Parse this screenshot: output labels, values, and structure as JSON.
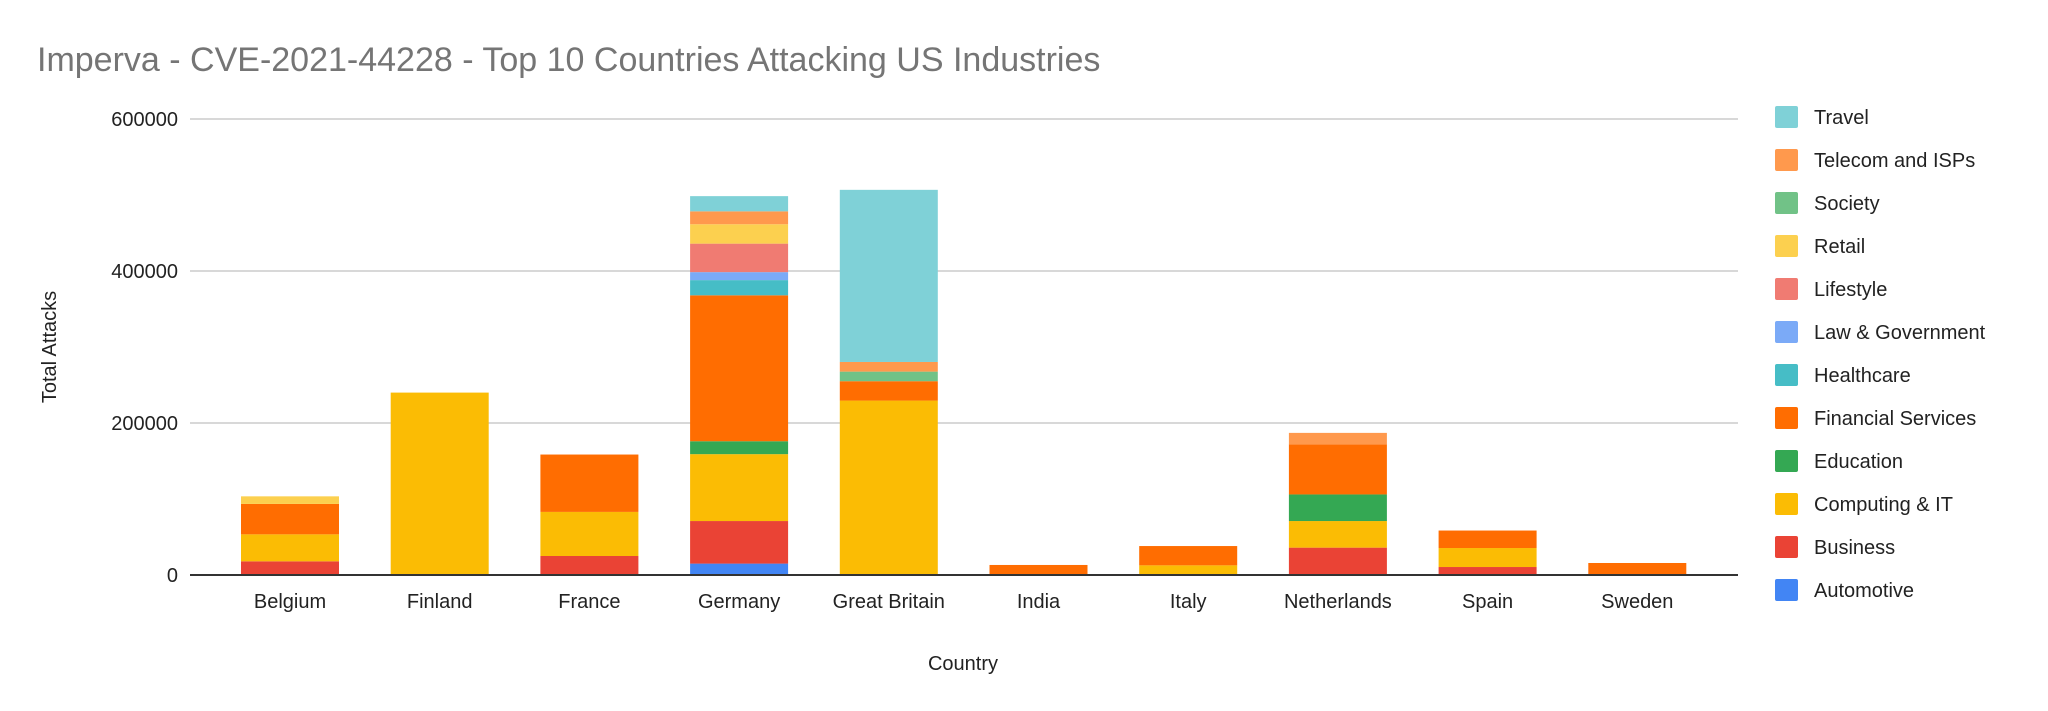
{
  "chart_data": {
    "type": "bar",
    "stacked": true,
    "title": "Imperva - CVE-2021-44228 - Top 10 Countries Attacking US Industries",
    "xlabel": "Country",
    "ylabel": "Total Attacks",
    "ylim": [
      0,
      600000
    ],
    "yticks": [
      0,
      200000,
      400000,
      600000
    ],
    "ytick_labels": [
      "0",
      "200000",
      "400000",
      "600000"
    ],
    "grid": true,
    "legend_position": "right",
    "categories": [
      "Belgium",
      "Finland",
      "France",
      "Germany",
      "Great Britain",
      "India",
      "Italy",
      "Netherlands",
      "Spain",
      "Sweden"
    ],
    "series": [
      {
        "name": "Automotive",
        "color": "#4285f4",
        "values": [
          0,
          0,
          0,
          15000,
          0,
          0,
          0,
          0,
          0,
          0
        ]
      },
      {
        "name": "Business",
        "color": "#ea4335",
        "values": [
          18000,
          0,
          25000,
          56000,
          0,
          0,
          0,
          36000,
          10500,
          0
        ]
      },
      {
        "name": "Computing & IT",
        "color": "#fbbc04",
        "values": [
          35500,
          240000,
          58000,
          88000,
          229500,
          0,
          12700,
          35000,
          25000,
          0
        ]
      },
      {
        "name": "Education",
        "color": "#34a853",
        "values": [
          0,
          0,
          0,
          17000,
          0,
          0,
          0,
          35000,
          0,
          0
        ]
      },
      {
        "name": "Financial Services",
        "color": "#ff6d01",
        "values": [
          40000,
          0,
          75500,
          192000,
          25500,
          13200,
          25400,
          66000,
          23000,
          15800
        ]
      },
      {
        "name": "Healthcare",
        "color": "#46bdc6",
        "values": [
          0,
          0,
          0,
          20000,
          0,
          0,
          0,
          0,
          0,
          0
        ]
      },
      {
        "name": "Law & Government",
        "color": "#7baaf7",
        "values": [
          0,
          0,
          0,
          10500,
          0,
          0,
          0,
          0,
          0,
          0
        ]
      },
      {
        "name": "Lifestyle",
        "color": "#f07b72",
        "values": [
          0,
          0,
          0,
          37500,
          0,
          0,
          0,
          0,
          0,
          0
        ]
      },
      {
        "name": "Retail",
        "color": "#fcd04f",
        "values": [
          10000,
          0,
          0,
          25500,
          0,
          0,
          0,
          0,
          0,
          0
        ]
      },
      {
        "name": "Society",
        "color": "#71c287",
        "values": [
          0,
          0,
          0,
          0,
          12600,
          0,
          0,
          0,
          0,
          0
        ]
      },
      {
        "name": "Telecom and ISPs",
        "color": "#ff994d",
        "values": [
          0,
          0,
          0,
          17000,
          12700,
          0,
          0,
          15000,
          0,
          0
        ]
      },
      {
        "name": "Travel",
        "color": "#7fd1d7",
        "values": [
          0,
          0,
          0,
          20000,
          226500,
          0,
          0,
          0,
          0,
          0
        ]
      }
    ]
  }
}
